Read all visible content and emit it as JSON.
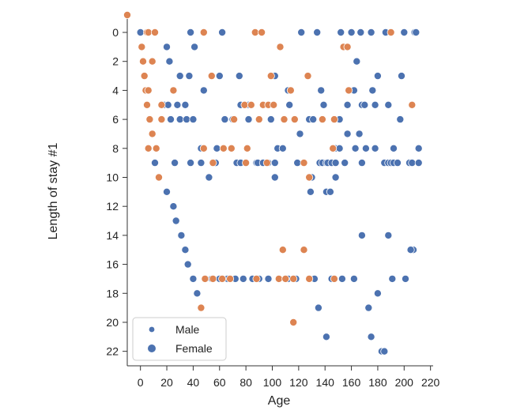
{
  "chart_data": {
    "type": "scatter",
    "xlabel": "Age",
    "ylabel": "Length of stay #1",
    "xlim": [
      -10,
      222
    ],
    "ylim": [
      -1.2,
      23
    ],
    "y_inverted": true,
    "grid": false,
    "legend_placement": "bottom-left",
    "x_ticks": [
      0,
      20,
      40,
      60,
      80,
      100,
      120,
      140,
      160,
      180,
      200,
      220
    ],
    "y_ticks": [
      0,
      2,
      4,
      6,
      8,
      10,
      12,
      14,
      16,
      18,
      20,
      22
    ],
    "series": [
      {
        "name": "Male",
        "color": "#4c72b0",
        "points": [
          [
            0,
            0
          ],
          [
            38,
            0
          ],
          [
            62,
            0
          ],
          [
            122,
            0
          ],
          [
            134,
            0
          ],
          [
            152,
            0
          ],
          [
            160,
            0
          ],
          [
            167,
            0
          ],
          [
            175,
            0
          ],
          [
            186,
            0
          ],
          [
            200,
            0
          ],
          [
            208,
            0
          ],
          [
            209,
            0
          ],
          [
            20,
            1
          ],
          [
            41,
            1
          ],
          [
            156,
            1
          ],
          [
            164,
            2
          ],
          [
            22,
            2
          ],
          [
            30,
            3
          ],
          [
            37,
            3
          ],
          [
            60,
            3
          ],
          [
            75,
            3
          ],
          [
            102,
            3
          ],
          [
            180,
            3
          ],
          [
            198,
            3
          ],
          [
            48,
            4
          ],
          [
            112,
            4
          ],
          [
            137,
            4
          ],
          [
            162,
            4
          ],
          [
            176,
            4
          ],
          [
            18,
            5
          ],
          [
            21,
            5
          ],
          [
            28,
            5
          ],
          [
            34,
            5
          ],
          [
            76,
            5
          ],
          [
            82,
            5
          ],
          [
            113,
            5
          ],
          [
            139,
            5
          ],
          [
            157,
            5
          ],
          [
            168,
            5
          ],
          [
            170,
            5
          ],
          [
            178,
            5
          ],
          [
            188,
            5
          ],
          [
            23,
            6
          ],
          [
            30,
            6
          ],
          [
            35,
            6
          ],
          [
            40,
            6
          ],
          [
            64,
            6
          ],
          [
            70,
            6
          ],
          [
            82,
            6
          ],
          [
            99,
            6
          ],
          [
            128,
            6
          ],
          [
            131,
            6
          ],
          [
            151,
            6
          ],
          [
            197,
            6
          ],
          [
            121,
            7
          ],
          [
            157,
            7
          ],
          [
            166,
            7
          ],
          [
            46,
            8
          ],
          [
            58,
            8
          ],
          [
            104,
            8
          ],
          [
            108,
            8
          ],
          [
            148,
            8
          ],
          [
            151,
            8
          ],
          [
            163,
            8
          ],
          [
            171,
            8
          ],
          [
            178,
            8
          ],
          [
            192,
            8
          ],
          [
            211,
            8
          ],
          [
            11,
            9
          ],
          [
            26,
            9
          ],
          [
            38,
            9
          ],
          [
            46,
            9
          ],
          [
            57,
            9
          ],
          [
            73,
            9
          ],
          [
            76,
            9
          ],
          [
            88,
            9
          ],
          [
            89,
            9
          ],
          [
            93,
            9
          ],
          [
            97,
            9
          ],
          [
            102,
            9
          ],
          [
            119,
            9
          ],
          [
            136,
            9
          ],
          [
            138,
            9
          ],
          [
            141,
            9
          ],
          [
            142,
            9
          ],
          [
            145,
            9
          ],
          [
            148,
            9
          ],
          [
            155,
            9
          ],
          [
            168,
            9
          ],
          [
            185,
            9
          ],
          [
            188,
            9
          ],
          [
            190,
            9
          ],
          [
            192,
            9
          ],
          [
            195,
            9
          ],
          [
            204,
            9
          ],
          [
            206,
            9
          ],
          [
            211,
            9
          ],
          [
            52,
            10
          ],
          [
            102,
            10
          ],
          [
            130,
            10
          ],
          [
            148,
            10
          ],
          [
            129,
            11
          ],
          [
            141,
            11
          ],
          [
            144,
            11
          ],
          [
            20,
            11
          ],
          [
            25,
            12
          ],
          [
            27,
            13
          ],
          [
            31,
            14
          ],
          [
            168,
            14
          ],
          [
            188,
            14
          ],
          [
            34,
            15
          ],
          [
            207,
            15
          ],
          [
            205,
            15
          ],
          [
            36,
            16
          ],
          [
            40,
            17
          ],
          [
            54,
            17
          ],
          [
            60,
            17
          ],
          [
            66,
            17
          ],
          [
            72,
            17
          ],
          [
            78,
            17
          ],
          [
            85,
            17
          ],
          [
            90,
            17
          ],
          [
            97,
            17
          ],
          [
            112,
            17
          ],
          [
            118,
            17
          ],
          [
            132,
            17
          ],
          [
            145,
            17
          ],
          [
            153,
            17
          ],
          [
            162,
            17
          ],
          [
            191,
            17
          ],
          [
            201,
            17
          ],
          [
            43,
            18
          ],
          [
            180,
            18
          ],
          [
            46,
            19
          ],
          [
            135,
            19
          ],
          [
            173,
            19
          ],
          [
            141,
            21
          ],
          [
            175,
            21
          ],
          [
            183,
            22
          ],
          [
            185,
            22
          ]
        ]
      },
      {
        "name": "Female",
        "color": "#dd8452",
        "points": [
          [
            -10,
            -1.2
          ],
          [
            5,
            0
          ],
          [
            6,
            0
          ],
          [
            11,
            0
          ],
          [
            48,
            0
          ],
          [
            87,
            0
          ],
          [
            92,
            0
          ],
          [
            190,
            0
          ],
          [
            1,
            1
          ],
          [
            106,
            1
          ],
          [
            154,
            1
          ],
          [
            157,
            1
          ],
          [
            2,
            2
          ],
          [
            9,
            2
          ],
          [
            3,
            3
          ],
          [
            54,
            3
          ],
          [
            99,
            3
          ],
          [
            127,
            3
          ],
          [
            4,
            4
          ],
          [
            6,
            4
          ],
          [
            25,
            4
          ],
          [
            114,
            4
          ],
          [
            158,
            4
          ],
          [
            5,
            5
          ],
          [
            16,
            5
          ],
          [
            79,
            5
          ],
          [
            84,
            5
          ],
          [
            93,
            5
          ],
          [
            97,
            5
          ],
          [
            101,
            5
          ],
          [
            206,
            5
          ],
          [
            7,
            6
          ],
          [
            16,
            6
          ],
          [
            71,
            6
          ],
          [
            90,
            6
          ],
          [
            109,
            6
          ],
          [
            117,
            6
          ],
          [
            138,
            6
          ],
          [
            147,
            6
          ],
          [
            9,
            7
          ],
          [
            6,
            8
          ],
          [
            12,
            8
          ],
          [
            48,
            8
          ],
          [
            63,
            8
          ],
          [
            69,
            8
          ],
          [
            81,
            8
          ],
          [
            146,
            8
          ],
          [
            55,
            9
          ],
          [
            80,
            9
          ],
          [
            96,
            9
          ],
          [
            124,
            9
          ],
          [
            14,
            10
          ],
          [
            128,
            10
          ],
          [
            49,
            17
          ],
          [
            55,
            17
          ],
          [
            62,
            17
          ],
          [
            68,
            17
          ],
          [
            88,
            17
          ],
          [
            105,
            17
          ],
          [
            110,
            17
          ],
          [
            116,
            17
          ],
          [
            128,
            17
          ],
          [
            147,
            17
          ],
          [
            46,
            19
          ],
          [
            108,
            15
          ],
          [
            124,
            15
          ],
          [
            116,
            20
          ]
        ]
      }
    ]
  }
}
